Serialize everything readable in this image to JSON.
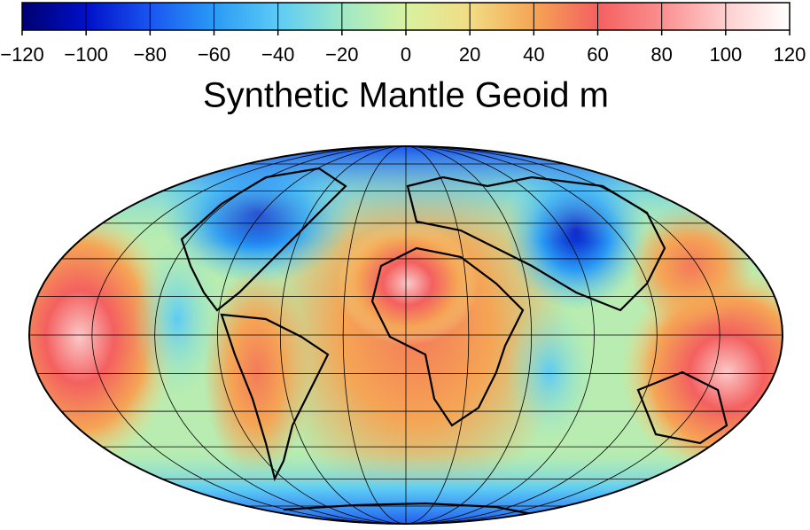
{
  "title": "Synthetic Mantle Geoid m",
  "colorbar": {
    "lim": [
      -120,
      120
    ],
    "ticks": [
      {
        "value": -120,
        "label": "−120"
      },
      {
        "value": -100,
        "label": "−100"
      },
      {
        "value": -80,
        "label": "−80"
      },
      {
        "value": -60,
        "label": "−60"
      },
      {
        "value": -40,
        "label": "−40"
      },
      {
        "value": -20,
        "label": "−20"
      },
      0,
      20,
      40,
      60,
      80,
      100,
      120
    ],
    "colors": [
      "#000070",
      "#0010c8",
      "#1a55f0",
      "#2a9af5",
      "#5ccbf5",
      "#9ee8c8",
      "#d8f2a0",
      "#f2dc84",
      "#f5a555",
      "#f46060",
      "#fa8f8f",
      "#ffcfcf",
      "#ffffff"
    ]
  }
}
